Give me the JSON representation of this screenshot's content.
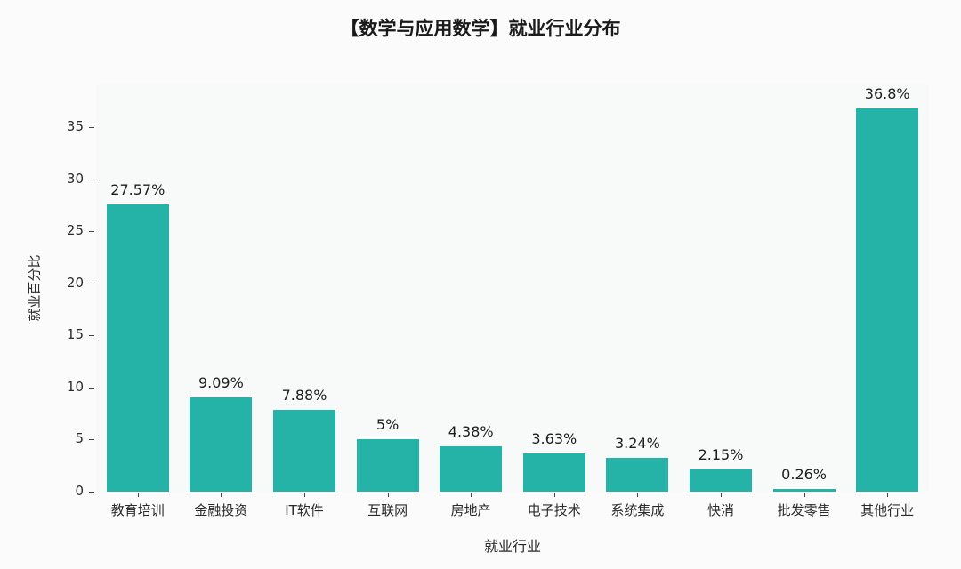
{
  "title": "【数学与应用数学】就业行业分布",
  "colors": {
    "bar": "#26b3a7",
    "text": "#2a2a2a",
    "plot_background": "#f8f9f9",
    "page_background": "#fbfbfb"
  },
  "chart_data": {
    "type": "bar",
    "title": "【数学与应用数学】就业行业分布",
    "categories": [
      "教育培训",
      "金融投资",
      "IT软件",
      "互联网",
      "房地产",
      "电子技术",
      "系统集成",
      "快消",
      "批发零售",
      "其他行业"
    ],
    "values": [
      27.57,
      9.09,
      7.88,
      5,
      4.38,
      3.63,
      3.24,
      2.15,
      0.26,
      36.8
    ],
    "value_labels": [
      "27.57%",
      "9.09%",
      "7.88%",
      "5%",
      "4.38%",
      "3.63%",
      "3.24%",
      "2.15%",
      "0.26%",
      "36.8%"
    ],
    "xlabel": "就业行业",
    "ylabel": "就业百分比",
    "yticks": [
      0,
      5,
      10,
      15,
      20,
      25,
      30,
      35
    ],
    "ylim": [
      0,
      39.1
    ],
    "grid": false,
    "legend": null,
    "bar_color": "#26b3a7"
  }
}
